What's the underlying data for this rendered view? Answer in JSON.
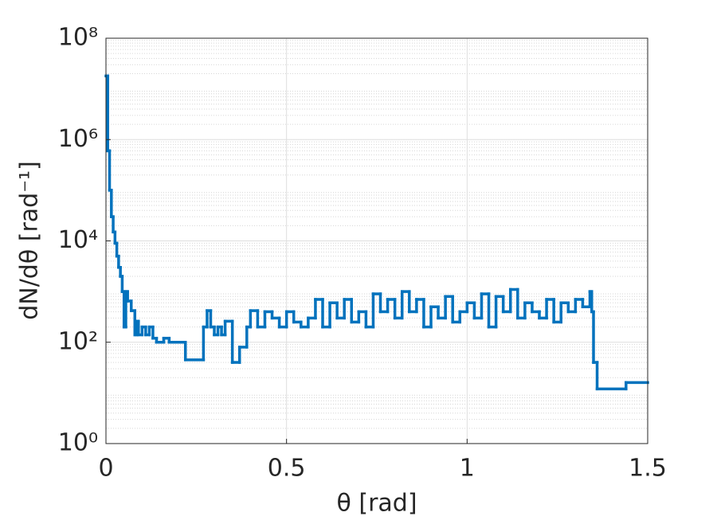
{
  "chart_data": {
    "type": "stairs",
    "x_label": "θ [rad]",
    "y_label": "dN/dθ [rad⁻¹]",
    "x": [
      0,
      0.005,
      0.01,
      0.015,
      0.02,
      0.025,
      0.03,
      0.035,
      0.04,
      0.045,
      0.05,
      0.055,
      0.06,
      0.07,
      0.08,
      0.085,
      0.09,
      0.1,
      0.11,
      0.12,
      0.13,
      0.14,
      0.16,
      0.175,
      0.22,
      0.27,
      0.28,
      0.29,
      0.3,
      0.31,
      0.32,
      0.33,
      0.35,
      0.37,
      0.39,
      0.4,
      0.42,
      0.44,
      0.46,
      0.48,
      0.5,
      0.52,
      0.54,
      0.56,
      0.58,
      0.6,
      0.62,
      0.64,
      0.66,
      0.68,
      0.7,
      0.72,
      0.74,
      0.76,
      0.78,
      0.8,
      0.82,
      0.84,
      0.86,
      0.88,
      0.9,
      0.92,
      0.94,
      0.96,
      0.98,
      1,
      1.02,
      1.04,
      1.06,
      1.08,
      1.1,
      1.12,
      1.14,
      1.16,
      1.18,
      1.2,
      1.22,
      1.24,
      1.26,
      1.28,
      1.3,
      1.32,
      1.34,
      1.345,
      1.35,
      1.36,
      1.44
    ],
    "values": [
      18000000,
      600000,
      100000,
      30000,
      15000,
      9000,
      5000,
      3000,
      2000,
      1000,
      200,
      1000,
      650,
      420,
      140,
      260,
      140,
      200,
      140,
      200,
      120,
      100,
      120,
      100,
      45,
      200,
      420,
      200,
      140,
      200,
      140,
      260,
      40,
      80,
      200,
      420,
      200,
      400,
      300,
      200,
      400,
      250,
      200,
      300,
      700,
      200,
      600,
      300,
      700,
      250,
      400,
      200,
      900,
      400,
      700,
      300,
      1000,
      400,
      700,
      200,
      500,
      300,
      800,
      250,
      400,
      600,
      300,
      900,
      200,
      800,
      400,
      1100,
      300,
      600,
      400,
      300,
      700,
      250,
      600,
      400,
      700,
      500,
      1000,
      400,
      40,
      12,
      16
    ],
    "color": "#0072bd",
    "xlim": [
      0,
      1.5
    ],
    "xticks": [
      0,
      0.5,
      1,
      1.5
    ],
    "ylim": [
      1,
      100000000
    ],
    "log_y": true,
    "yticks": [
      {
        "value": 1,
        "label": "10⁰"
      },
      {
        "value": 100,
        "label": "10²"
      },
      {
        "value": 10000,
        "label": "10⁴"
      },
      {
        "value": 1000000,
        "label": "10⁶"
      },
      {
        "value": 100000000,
        "label": "10⁸"
      }
    ],
    "grid": true,
    "minor_grid": true
  }
}
